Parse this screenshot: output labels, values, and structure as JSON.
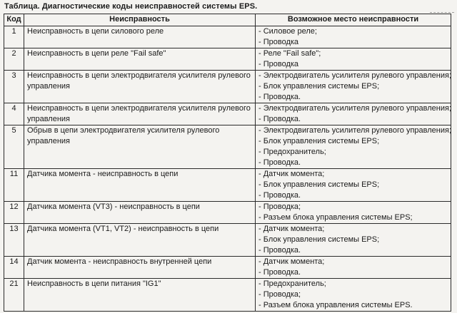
{
  "title": "Таблица. Диагностические коды неисправностей системы EPS.",
  "table": {
    "headers": [
      "Код",
      "Неисправность",
      "Возможное место неисправности"
    ],
    "rows": [
      {
        "code": "1",
        "fault": "Неисправность в цепи силового реле",
        "locations": [
          "- Силовое реле;",
          "- Проводка"
        ]
      },
      {
        "code": "2",
        "fault": "Неисправность в цепи реле \"Fail safe\"",
        "locations": [
          "- Реле \"Fail safe\";",
          "- Проводка"
        ]
      },
      {
        "code": "3",
        "fault": "Неисправность в цепи электродвигателя усилителя рулевого управления",
        "locations": [
          "- Электродвигатель усилителя рулевого управления;",
          "- Блок управления системы EPS;",
          "- Проводка."
        ]
      },
      {
        "code": "4",
        "fault": "Неисправность в цепи электродвигателя усилителя рулевого управления",
        "locations": [
          "- Электродвигатель усилителя рулевого управления;",
          "- Проводка."
        ]
      },
      {
        "code": "5",
        "fault": "Обрыв в цепи электродвигателя усилителя рулевого управления",
        "locations": [
          "- Электродвигатель усилителя рулевого управления;",
          "- Блок управления системы EPS;",
          "- Предохранитель;",
          "- Проводка."
        ]
      },
      {
        "code": "11",
        "fault": "Датчика момента - неисправность в цепи",
        "locations": [
          "- Датчик момента;",
          "- Блок управления системы EPS;",
          "- Проводка."
        ]
      },
      {
        "code": "12",
        "fault": "Датчика момента (VT3) - неисправность в цепи",
        "locations": [
          "- Проводка;",
          "- Разъем блока управления системы EPS;"
        ]
      },
      {
        "code": "13",
        "fault": "Датчика момента (VT1, VT2) - неисправность в цепи",
        "locations": [
          "- Датчик момента;",
          "- Блок управления системы EPS;",
          "- Проводка."
        ]
      },
      {
        "code": "14",
        "fault": "Датчик момента - неисправность внутренней цепи",
        "locations": [
          "- Датчик момента;",
          "- Проводка."
        ]
      },
      {
        "code": "21",
        "fault": "Неисправность в цепи питания \"IG1\"",
        "locations": [
          "- Предохранитель;",
          "- Проводка;",
          "- Разъем блока управления системы EPS."
        ]
      }
    ]
  }
}
